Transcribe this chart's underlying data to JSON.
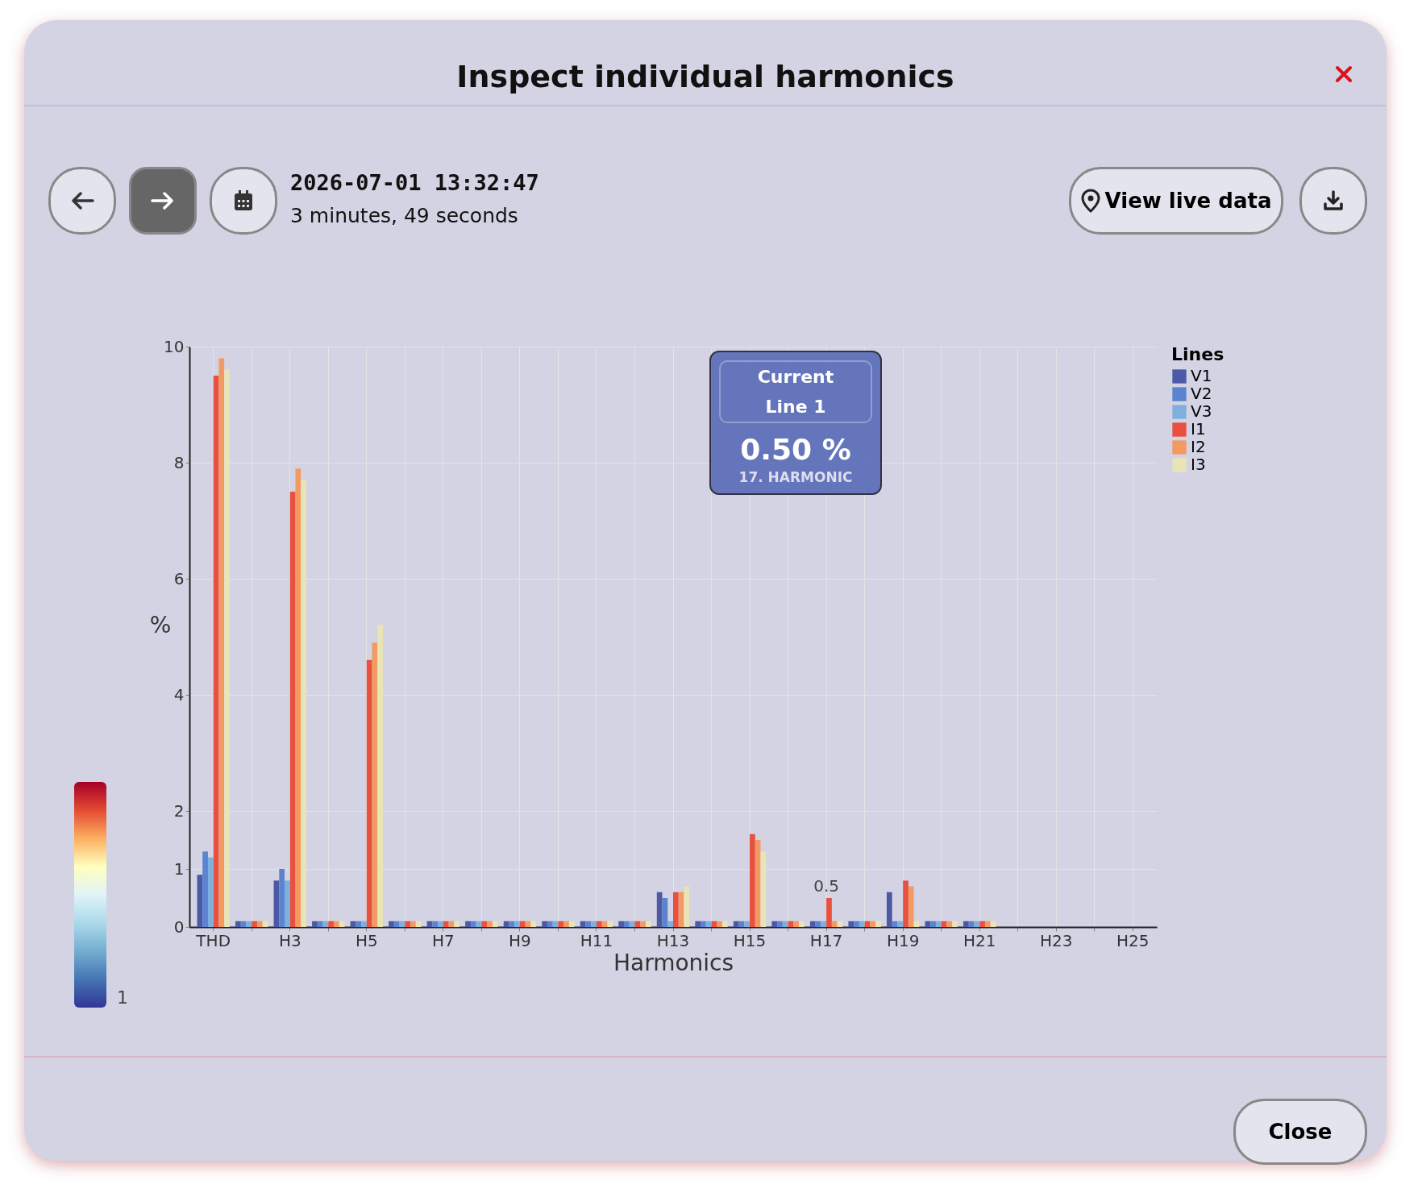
{
  "chart_data": {
    "type": "bar",
    "title": "Inspect individual harmonics",
    "subtitle": "2026-07-01 13:32:47",
    "xlabel": "Harmonics",
    "ylabel": "%",
    "legend_title": "Lines",
    "legend": "right",
    "grid": true,
    "categories": [
      "THD",
      null,
      "H3",
      null,
      "H5",
      null,
      "H7",
      null,
      "H9",
      null,
      "H11",
      null,
      "H13",
      null,
      "H15",
      null,
      "H17",
      null,
      "H19",
      null,
      "H21",
      null,
      "H23",
      null,
      "H25"
    ],
    "ylim": [
      0,
      10
    ],
    "yticks": [
      0,
      1,
      2,
      4,
      6,
      8,
      10
    ],
    "series": [
      {
        "name": "V1",
        "color": "#4c5aa6",
        "values": [
          0.9,
          0.1,
          0.8,
          0.1,
          0.1,
          0.1,
          0.1,
          0.1,
          0.1,
          0.1,
          0.1,
          0.1,
          0.6,
          0.1,
          0.1,
          0.1,
          0.1,
          0.1,
          0.6,
          0.1,
          0.1,
          null,
          null,
          null,
          null
        ]
      },
      {
        "name": "V2",
        "color": "#5b83cf",
        "values": [
          1.3,
          0.1,
          1.0,
          0.1,
          0.1,
          0.1,
          0.1,
          0.1,
          0.1,
          0.1,
          0.1,
          0.1,
          0.5,
          0.1,
          0.1,
          0.1,
          0.1,
          0.1,
          0.1,
          0.1,
          0.1,
          null,
          null,
          null,
          null
        ]
      },
      {
        "name": "V3",
        "color": "#7fb0dd",
        "values": [
          1.2,
          0.1,
          0.8,
          0.1,
          0.1,
          0.1,
          0.1,
          0.1,
          0.1,
          0.1,
          0.1,
          0.1,
          0.1,
          0.1,
          0.1,
          0.1,
          0.1,
          0.1,
          0.1,
          0.1,
          0.1,
          null,
          null,
          null,
          null
        ]
      },
      {
        "name": "I1",
        "color": "#e8503f",
        "values": [
          9.5,
          0.1,
          7.5,
          0.1,
          4.6,
          0.1,
          0.1,
          0.1,
          0.1,
          0.1,
          0.1,
          0.1,
          0.6,
          0.1,
          1.6,
          0.1,
          0.5,
          0.1,
          0.8,
          0.1,
          0.1,
          null,
          null,
          null,
          null
        ]
      },
      {
        "name": "I2",
        "color": "#f39a62",
        "values": [
          9.8,
          0.1,
          7.9,
          0.1,
          4.9,
          0.1,
          0.1,
          0.1,
          0.1,
          0.1,
          0.1,
          0.1,
          0.6,
          0.1,
          1.5,
          0.1,
          0.1,
          0.1,
          0.7,
          0.1,
          0.1,
          null,
          null,
          null,
          null
        ]
      },
      {
        "name": "I3",
        "color": "#e9e4b8",
        "values": [
          9.6,
          0.1,
          7.7,
          0.1,
          5.2,
          0.1,
          0.1,
          0.1,
          0.1,
          0.1,
          0.1,
          0.1,
          0.7,
          0.1,
          1.3,
          0.1,
          0.1,
          0.1,
          0.1,
          0.1,
          0.1,
          null,
          null,
          null,
          null
        ]
      }
    ],
    "annotations": [
      "3 minutes, 49 seconds",
      "View live data",
      "Close",
      "Current",
      "Line 1",
      "0.50 %",
      "17. HARMONIC",
      {
        "text": "0.5",
        "x": "H17",
        "y": 0.5
      },
      "1"
    ]
  }
}
